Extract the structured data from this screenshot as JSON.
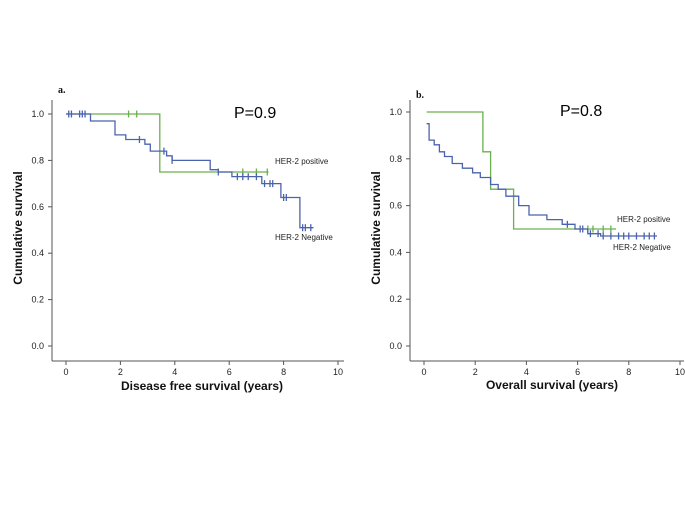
{
  "chart_data": [
    {
      "type": "line",
      "panel_label": "a.",
      "annotation": "P=0.9",
      "xlabel": "Disease free survival (years)",
      "ylabel": "Cumulative survival",
      "xlim": [
        0,
        10
      ],
      "ylim": [
        0,
        1.0
      ],
      "x_ticks": [
        "0",
        "2",
        "4",
        "6",
        "8",
        "10"
      ],
      "y_ticks": [
        "0.0",
        "0.2",
        "0.4",
        "0.6",
        "0.8",
        "1.0"
      ],
      "series": [
        {
          "name": "HER-2  positive",
          "color": "#6ab04c",
          "steps": [
            [
              0,
              1.0
            ],
            [
              3.45,
              1.0
            ],
            [
              3.45,
              0.75
            ],
            [
              7.45,
              0.75
            ]
          ],
          "censored_x": [
            2.3,
            2.6,
            6.5,
            7.0,
            7.4
          ]
        },
        {
          "name": "HER-2 Negative",
          "color": "#4b63ad",
          "steps": [
            [
              0,
              1.0
            ],
            [
              0.9,
              1.0
            ],
            [
              0.9,
              0.97
            ],
            [
              1.8,
              0.97
            ],
            [
              1.8,
              0.91
            ],
            [
              2.2,
              0.91
            ],
            [
              2.2,
              0.89
            ],
            [
              2.9,
              0.89
            ],
            [
              2.9,
              0.87
            ],
            [
              3.1,
              0.87
            ],
            [
              3.1,
              0.84
            ],
            [
              3.7,
              0.84
            ],
            [
              3.7,
              0.82
            ],
            [
              3.9,
              0.82
            ],
            [
              3.9,
              0.8
            ],
            [
              5.3,
              0.8
            ],
            [
              5.3,
              0.76
            ],
            [
              5.6,
              0.76
            ],
            [
              5.6,
              0.75
            ],
            [
              6.1,
              0.75
            ],
            [
              6.1,
              0.73
            ],
            [
              7.2,
              0.73
            ],
            [
              7.2,
              0.7
            ],
            [
              7.9,
              0.7
            ],
            [
              7.9,
              0.64
            ],
            [
              8.6,
              0.64
            ],
            [
              8.6,
              0.51
            ],
            [
              9.1,
              0.51
            ]
          ],
          "censored_x": [
            0.1,
            0.2,
            0.5,
            0.6,
            0.7,
            2.7,
            3.6,
            3.9,
            5.6,
            6.3,
            6.5,
            6.7,
            7.0,
            7.3,
            7.5,
            7.6,
            8.0,
            8.1,
            8.7,
            8.8,
            9.0
          ]
        }
      ]
    },
    {
      "type": "line",
      "panel_label": "b.",
      "annotation": "P=0.8",
      "xlabel": "Overall survival (years)",
      "ylabel": "Cumulative survival",
      "xlim": [
        0,
        10
      ],
      "ylim": [
        0,
        1.0
      ],
      "x_ticks": [
        "0",
        "2",
        "4",
        "6",
        "8",
        "10"
      ],
      "y_ticks": [
        "0.0",
        "0.2",
        "0.4",
        "0.6",
        "0.8",
        "1.0"
      ],
      "series": [
        {
          "name": "HER-2  positive",
          "color": "#6ab04c",
          "steps": [
            [
              0.1,
              1.0
            ],
            [
              2.3,
              1.0
            ],
            [
              2.3,
              0.83
            ],
            [
              2.6,
              0.83
            ],
            [
              2.6,
              0.67
            ],
            [
              3.5,
              0.67
            ],
            [
              3.5,
              0.5
            ],
            [
              7.5,
              0.5
            ]
          ],
          "censored_x": [
            6.4,
            6.6,
            7.0,
            7.3
          ]
        },
        {
          "name": "HER-2 Negative",
          "color": "#4b63ad",
          "steps": [
            [
              0.1,
              0.95
            ],
            [
              0.2,
              0.95
            ],
            [
              0.2,
              0.88
            ],
            [
              0.4,
              0.88
            ],
            [
              0.4,
              0.86
            ],
            [
              0.6,
              0.86
            ],
            [
              0.6,
              0.83
            ],
            [
              0.8,
              0.83
            ],
            [
              0.8,
              0.81
            ],
            [
              1.1,
              0.81
            ],
            [
              1.1,
              0.78
            ],
            [
              1.5,
              0.78
            ],
            [
              1.5,
              0.76
            ],
            [
              1.9,
              0.76
            ],
            [
              1.9,
              0.74
            ],
            [
              2.2,
              0.74
            ],
            [
              2.2,
              0.72
            ],
            [
              2.6,
              0.72
            ],
            [
              2.6,
              0.69
            ],
            [
              2.9,
              0.69
            ],
            [
              2.9,
              0.67
            ],
            [
              3.2,
              0.67
            ],
            [
              3.2,
              0.64
            ],
            [
              3.7,
              0.64
            ],
            [
              3.7,
              0.6
            ],
            [
              4.1,
              0.6
            ],
            [
              4.1,
              0.56
            ],
            [
              4.8,
              0.56
            ],
            [
              4.8,
              0.54
            ],
            [
              5.4,
              0.54
            ],
            [
              5.4,
              0.52
            ],
            [
              5.9,
              0.52
            ],
            [
              5.9,
              0.5
            ],
            [
              6.4,
              0.5
            ],
            [
              6.4,
              0.48
            ],
            [
              6.9,
              0.48
            ],
            [
              6.9,
              0.47
            ],
            [
              9.1,
              0.47
            ]
          ],
          "censored_x": [
            5.6,
            6.1,
            6.2,
            6.5,
            6.8,
            7.0,
            7.3,
            7.6,
            7.8,
            8.0,
            8.3,
            8.6,
            8.8,
            9.0
          ]
        }
      ]
    }
  ]
}
